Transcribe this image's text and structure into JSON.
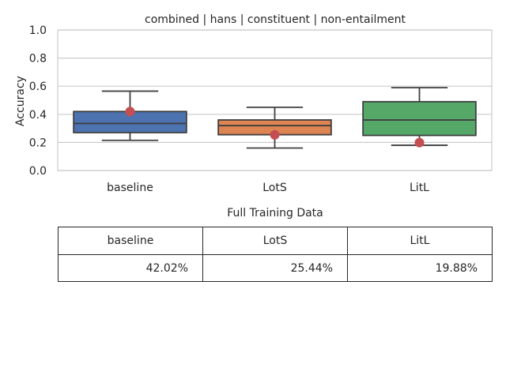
{
  "chart_data": {
    "type": "box",
    "title": "combined | hans | constituent | non-entailment",
    "xlabel": "",
    "ylabel": "Accuracy",
    "ylim": [
      0.0,
      1.0
    ],
    "yticks": [
      "0.0",
      "0.2",
      "0.4",
      "0.6",
      "0.8",
      "1.0"
    ],
    "grid": true,
    "categories": [
      "baseline",
      "LotS",
      "LitL"
    ],
    "colors": [
      "#4c72b0",
      "#dd8452",
      "#55a868"
    ],
    "marker_color": "#c44e52",
    "boxes": [
      {
        "name": "baseline",
        "whisker_low": 0.215,
        "q1": 0.27,
        "median": 0.335,
        "q3": 0.42,
        "whisker_high": 0.565
      },
      {
        "name": "LotS",
        "whisker_low": 0.16,
        "q1": 0.255,
        "median": 0.32,
        "q3": 0.36,
        "whisker_high": 0.45
      },
      {
        "name": "LitL",
        "whisker_low": 0.18,
        "q1": 0.25,
        "median": 0.36,
        "q3": 0.49,
        "whisker_high": 0.59
      }
    ],
    "points": [
      0.4202,
      0.2544,
      0.1988
    ]
  },
  "table": {
    "title": "Full Training Data",
    "headers": [
      "baseline",
      "LotS",
      "LitL"
    ],
    "values": [
      "42.02%",
      "25.44%",
      "19.88%"
    ]
  }
}
